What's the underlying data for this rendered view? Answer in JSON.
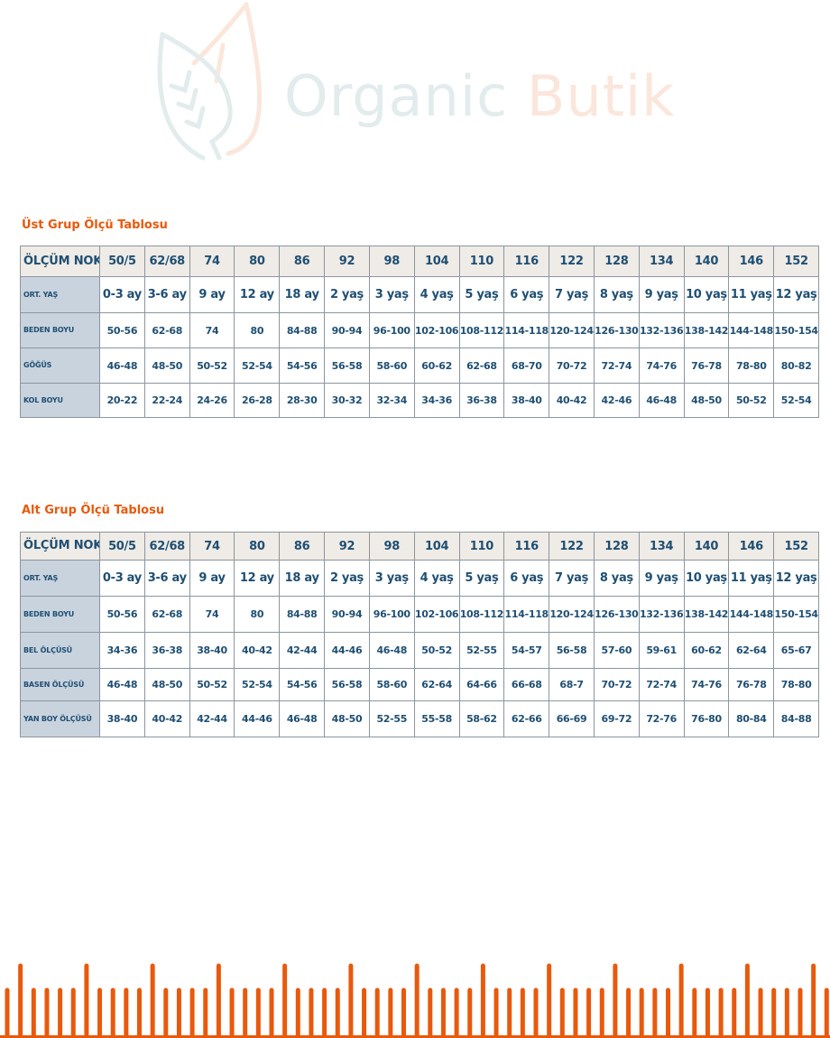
{
  "logo": {
    "text_primary": "Organic",
    "text_secondary": "Butik",
    "colors": {
      "primary": "#e3ecec",
      "secondary": "#fbe6dc"
    }
  },
  "accent_color": "#e8590c",
  "text_color": "#1f4f73",
  "tables": [
    {
      "title": "Üst Grup Ölçü Tablosu",
      "rows": [
        {
          "label": "ÖLÇÜM NOKTASI",
          "values": [
            "50/5",
            "62/68",
            "74",
            "80",
            "86",
            "92",
            "98",
            "104",
            "110",
            "116",
            "122",
            "128",
            "134",
            "140",
            "146",
            "152"
          ]
        },
        {
          "label": "ORT. YAŞ",
          "values": [
            "0-3 ay",
            "3-6 ay",
            "9 ay",
            "12 ay",
            "18 ay",
            "2 yaş",
            "3 yaş",
            "4 yaş",
            "5 yaş",
            "6 yaş",
            "7 yaş",
            "8 yaş",
            "9 yaş",
            "10 yaş",
            "11 yaş",
            "12 yaş"
          ]
        },
        {
          "label": "BEDEN BOYU",
          "values": [
            "50-56",
            "62-68",
            "74",
            "80",
            "84-88",
            "90-94",
            "96-100",
            "102-106",
            "108-112",
            "114-118",
            "120-124",
            "126-130",
            "132-136",
            "138-142",
            "144-148",
            "150-154"
          ]
        },
        {
          "label": "GÖĞÜS",
          "values": [
            "46-48",
            "48-50",
            "50-52",
            "52-54",
            "54-56",
            "56-58",
            "58-60",
            "60-62",
            "62-68",
            "68-70",
            "70-72",
            "72-74",
            "74-76",
            "76-78",
            "78-80",
            "80-82"
          ]
        },
        {
          "label": "KOL BOYU",
          "values": [
            "20-22",
            "22-24",
            "24-26",
            "26-28",
            "28-30",
            "30-32",
            "32-34",
            "34-36",
            "36-38",
            "38-40",
            "40-42",
            "42-46",
            "46-48",
            "48-50",
            "50-52",
            "52-54"
          ]
        }
      ]
    },
    {
      "title": "Alt Grup Ölçü Tablosu",
      "rows": [
        {
          "label": "ÖLÇÜM NOKTASI",
          "values": [
            "50/5",
            "62/68",
            "74",
            "80",
            "86",
            "92",
            "98",
            "104",
            "110",
            "116",
            "122",
            "128",
            "134",
            "140",
            "146",
            "152"
          ]
        },
        {
          "label": "ORT. YAŞ",
          "values": [
            "0-3 ay",
            "3-6 ay",
            "9 ay",
            "12 ay",
            "18 ay",
            "2 yaş",
            "3 yaş",
            "4 yaş",
            "5 yaş",
            "6 yaş",
            "7 yaş",
            "8 yaş",
            "9 yaş",
            "10 yaş",
            "11 yaş",
            "12 yaş"
          ]
        },
        {
          "label": "BEDEN BOYU",
          "values": [
            "50-56",
            "62-68",
            "74",
            "80",
            "84-88",
            "90-94",
            "96-100",
            "102-106",
            "108-112",
            "114-118",
            "120-124",
            "126-130",
            "132-136",
            "138-142",
            "144-148",
            "150-154"
          ]
        },
        {
          "label": "BEL ÖLÇÜSÜ",
          "values": [
            "34-36",
            "36-38",
            "38-40",
            "40-42",
            "42-44",
            "44-46",
            "46-48",
            "50-52",
            "52-55",
            "54-57",
            "56-58",
            "57-60",
            "59-61",
            "60-62",
            "62-64",
            "65-67"
          ]
        },
        {
          "label": "BASEN ÖLÇÜSÜ",
          "values": [
            "46-48",
            "48-50",
            "50-52",
            "52-54",
            "54-56",
            "56-58",
            "58-60",
            "62-64",
            "64-66",
            "66-68",
            "68-7",
            "70-72",
            "72-74",
            "74-76",
            "76-78",
            "78-80"
          ]
        },
        {
          "label": "YAN BOY ÖLÇÜSÜ",
          "values": [
            "38-40",
            "40-42",
            "42-44",
            "44-46",
            "46-48",
            "48-50",
            "52-55",
            "55-58",
            "58-62",
            "62-66",
            "66-69",
            "69-72",
            "72-76",
            "76-80",
            "80-84",
            "84-88"
          ]
        }
      ]
    }
  ]
}
